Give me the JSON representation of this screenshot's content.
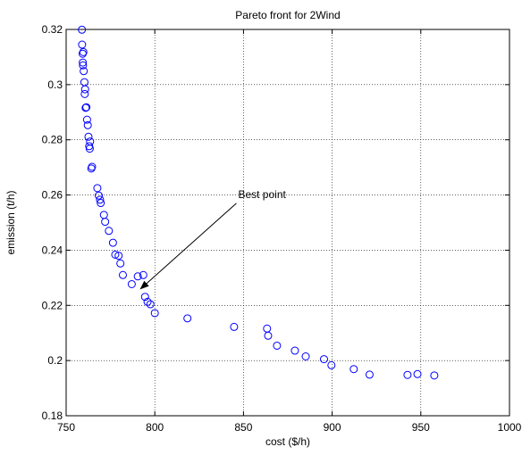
{
  "chart_data": {
    "type": "scatter",
    "title": "Pareto front for 2Wind",
    "xlabel": "cost ($/h)",
    "ylabel": "emission (t/h)",
    "xlim": [
      750,
      1000
    ],
    "ylim": [
      0.18,
      0.32
    ],
    "x_ticks": [
      750,
      800,
      850,
      900,
      950,
      1000
    ],
    "y_ticks": [
      0.18,
      0.2,
      0.22,
      0.24,
      0.26,
      0.28,
      0.3,
      0.32
    ],
    "x_tick_labels": [
      "750",
      "800",
      "850",
      "900",
      "950",
      "1000"
    ],
    "y_tick_labels": [
      "0.18",
      "0.2",
      "0.22",
      "0.24",
      "0.26",
      "0.28",
      "0.3",
      "0.32"
    ],
    "grid": true,
    "marker": "circle",
    "marker_color": "#0000ff",
    "series": [
      {
        "x": [
          758.9,
          759.0,
          759.3,
          759.4,
          759.5,
          759.7,
          759.9,
          760.3,
          760.5,
          760.7,
          761.0,
          761.4,
          761.8,
          762.2,
          762.6,
          763.0,
          763.3,
          763.5,
          764.2,
          764.6,
          767.6,
          768.4,
          769.1,
          769.5,
          771.3,
          772.0,
          774.1,
          776.4,
          777.7,
          779.6,
          780.6,
          782.0,
          787.0,
          790.4,
          793.5,
          794.5,
          795.9,
          797.5,
          800.0,
          818.4,
          844.7,
          863.3,
          863.9,
          868.9,
          879.0,
          885.1,
          895.4,
          899.6,
          912.2,
          921.1,
          942.5,
          948.1,
          957.6
        ],
        "y": [
          0.3199,
          0.3145,
          0.3112,
          0.308,
          0.307,
          0.3118,
          0.3049,
          0.3009,
          0.2966,
          0.2983,
          0.2916,
          0.2918,
          0.2873,
          0.2853,
          0.2811,
          0.2777,
          0.2768,
          0.2794,
          0.2696,
          0.2702,
          0.2625,
          0.2598,
          0.2583,
          0.2571,
          0.2528,
          0.2503,
          0.247,
          0.2427,
          0.2384,
          0.238,
          0.2352,
          0.231,
          0.2277,
          0.2305,
          0.231,
          0.2231,
          0.2213,
          0.2204,
          0.2172,
          0.2153,
          0.2122,
          0.2116,
          0.209,
          0.2054,
          0.2036,
          0.2015,
          0.2005,
          0.1983,
          0.1969,
          0.1949,
          0.1948,
          0.1951,
          0.1946
        ]
      }
    ],
    "annotations": [
      {
        "text": "Best  point",
        "from": [
          846,
          0.257
        ],
        "to": [
          792,
          0.226
        ]
      }
    ]
  }
}
